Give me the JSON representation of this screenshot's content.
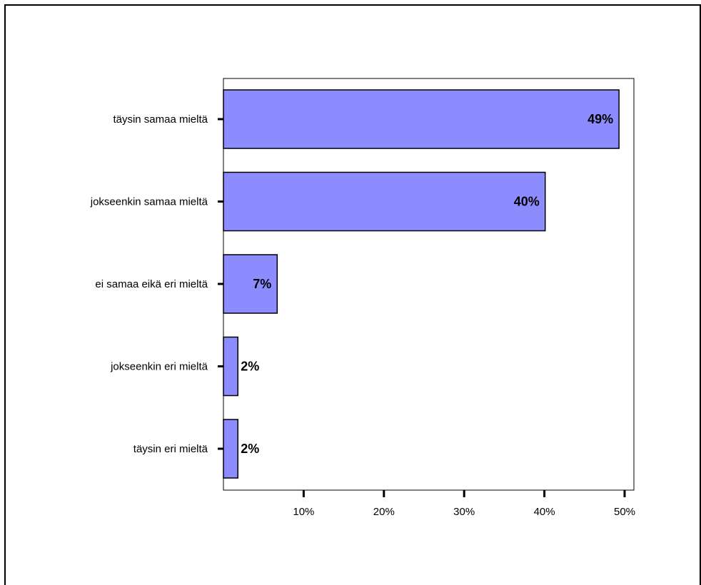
{
  "chart_data": {
    "type": "bar",
    "orientation": "horizontal",
    "title": "",
    "xlabel": "",
    "ylabel": "",
    "categories": [
      "täysin samaa mieltä",
      "jokseenkin samaa mieltä",
      "ei samaa eikä eri mieltä",
      "jokseenkin eri mieltä",
      "täysin eri mieltä"
    ],
    "values": [
      49.3,
      40.1,
      6.7,
      1.8,
      1.8
    ],
    "data_labels": [
      "49%",
      "40%",
      "7%",
      "2%",
      "2%"
    ],
    "xlim": [
      0,
      50
    ],
    "x_ticks": [
      10,
      20,
      30,
      40,
      50
    ],
    "x_tick_labels": [
      "10%",
      "20%",
      "30%",
      "40%",
      "50%"
    ],
    "bar_color": "#8c8cff",
    "bar_edge_color": "#000000",
    "grid": false,
    "legend": "none"
  }
}
